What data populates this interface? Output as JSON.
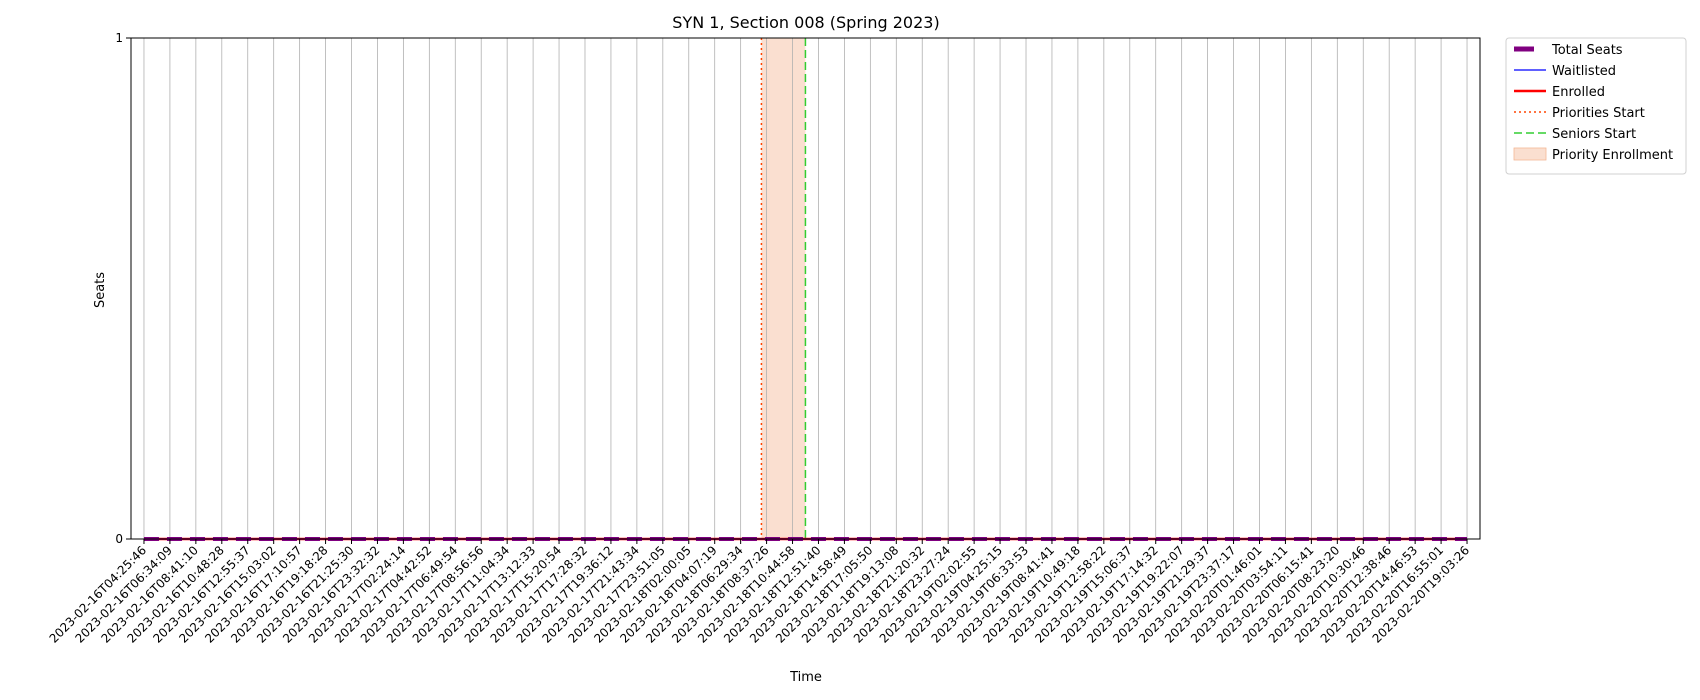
{
  "chart_data": {
    "type": "line",
    "title": "SYN 1, Section 008 (Spring 2023)",
    "xlabel": "Time",
    "ylabel": "Seats",
    "ylim": [
      0,
      1
    ],
    "y_ticks": [
      "0",
      "1"
    ],
    "grid": "vertical",
    "legend_placement": "outside-top-right",
    "x": [
      "2023-02-16T04:25:46",
      "2023-02-16T06:34:09",
      "2023-02-16T08:41:10",
      "2023-02-16T10:48:28",
      "2023-02-16T12:55:37",
      "2023-02-16T15:03:02",
      "2023-02-16T17:10:57",
      "2023-02-16T19:18:28",
      "2023-02-16T21:25:30",
      "2023-02-16T23:32:32",
      "2023-02-17T02:24:14",
      "2023-02-17T04:42:52",
      "2023-02-17T06:49:54",
      "2023-02-17T08:56:56",
      "2023-02-17T11:04:34",
      "2023-02-17T13:12:33",
      "2023-02-17T15:20:54",
      "2023-02-17T17:28:32",
      "2023-02-17T19:36:12",
      "2023-02-17T21:43:34",
      "2023-02-17T23:51:05",
      "2023-02-18T02:00:05",
      "2023-02-18T04:07:19",
      "2023-02-18T06:29:34",
      "2023-02-18T08:37:26",
      "2023-02-18T10:44:58",
      "2023-02-18T12:51:40",
      "2023-02-18T14:58:49",
      "2023-02-18T17:05:50",
      "2023-02-18T19:13:08",
      "2023-02-18T21:20:32",
      "2023-02-18T23:27:24",
      "2023-02-19T02:02:55",
      "2023-02-19T04:25:15",
      "2023-02-19T06:33:53",
      "2023-02-19T08:41:41",
      "2023-02-19T10:49:18",
      "2023-02-19T12:58:22",
      "2023-02-19T15:06:37",
      "2023-02-19T17:14:32",
      "2023-02-19T19:22:07",
      "2023-02-19T21:29:37",
      "2023-02-19T23:37:17",
      "2023-02-20T01:46:01",
      "2023-02-20T03:54:11",
      "2023-02-20T06:15:41",
      "2023-02-20T08:23:20",
      "2023-02-20T10:30:46",
      "2023-02-20T12:38:46",
      "2023-02-20T14:46:53",
      "2023-02-20T16:55:01",
      "2023-02-20T19:03:26"
    ],
    "series": [
      {
        "name": "Total Seats",
        "style": "thick-dashed",
        "color": "#800080",
        "value": 0
      },
      {
        "name": "Waitlisted",
        "style": "solid-thin",
        "color": "#0000ff",
        "value": 0
      },
      {
        "name": "Enrolled",
        "style": "solid-thick",
        "color": "#ff0000",
        "value": 0
      }
    ],
    "markers": [
      {
        "name": "Priorities Start",
        "style": "dotted",
        "color": "#ff4500",
        "x": "2023-02-18T08:12:00"
      },
      {
        "name": "Seniors Start",
        "style": "dashed",
        "color": "#32cd32",
        "x": "2023-02-18T11:48:00"
      }
    ],
    "spans": [
      {
        "name": "Priority Enrollment",
        "color": "#f4b896",
        "x_start": "2023-02-18T08:12:00",
        "x_end": "2023-02-18T11:48:00"
      }
    ]
  }
}
